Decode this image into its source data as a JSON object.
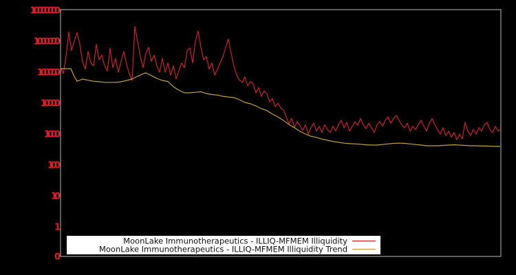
{
  "colors": {
    "background": "#000000",
    "plot_border": "#bdbdbd",
    "axis_label": "#e01e2b",
    "series_red": "#cb2130",
    "series_yellow": "#c2a33b",
    "legend_bg": "#ffffff",
    "legend_text": "#111111"
  },
  "chart_data": {
    "type": "line",
    "title": "",
    "xlabel": "",
    "ylabel": "",
    "log_scale_y": true,
    "ylim": [
      1,
      10000000
    ],
    "grid": false,
    "x_tick_labels": [],
    "legend_position": "bottom-center",
    "y_axis": {
      "tick_labels": [
        "10000000",
        "1000000",
        "100000",
        "10000",
        "1000",
        "100",
        "10",
        "1",
        "0"
      ]
    },
    "series": [
      {
        "name": "MoonLake Immunotherapeutics - ILLIQ-MFMEM Illiquidity",
        "color": "#cb2130",
        "points": [
          [
            0,
            145000
          ],
          [
            4,
            90000
          ],
          [
            8,
            320000
          ],
          [
            12,
            2000000
          ],
          [
            16,
            500000
          ],
          [
            20,
            1000000
          ],
          [
            24,
            1900000
          ],
          [
            28,
            800000
          ],
          [
            32,
            215000
          ],
          [
            36,
            125000
          ],
          [
            40,
            470000
          ],
          [
            44,
            200000
          ],
          [
            48,
            160000
          ],
          [
            52,
            800000
          ],
          [
            56,
            250000
          ],
          [
            60,
            360000
          ],
          [
            64,
            160000
          ],
          [
            68,
            110000
          ],
          [
            72,
            600000
          ],
          [
            76,
            140000
          ],
          [
            80,
            275000
          ],
          [
            84,
            100000
          ],
          [
            88,
            225000
          ],
          [
            92,
            470000
          ],
          [
            96,
            180000
          ],
          [
            100,
            90000
          ],
          [
            104,
            54000
          ],
          [
            108,
            3000000
          ],
          [
            112,
            1000000
          ],
          [
            116,
            320000
          ],
          [
            120,
            140000
          ],
          [
            124,
            400000
          ],
          [
            128,
            630000
          ],
          [
            132,
            225000
          ],
          [
            136,
            355000
          ],
          [
            140,
            160000
          ],
          [
            144,
            100000
          ],
          [
            148,
            280000
          ],
          [
            152,
            100000
          ],
          [
            156,
            200000
          ],
          [
            160,
            80000
          ],
          [
            164,
            160000
          ],
          [
            168,
            60000
          ],
          [
            172,
            112000
          ],
          [
            176,
            200000
          ],
          [
            180,
            140000
          ],
          [
            184,
            500000
          ],
          [
            188,
            600000
          ],
          [
            192,
            200000
          ],
          [
            196,
            1000000
          ],
          [
            200,
            2150000
          ],
          [
            204,
            630000
          ],
          [
            208,
            250000
          ],
          [
            212,
            320000
          ],
          [
            216,
            125000
          ],
          [
            220,
            200000
          ],
          [
            224,
            80000
          ],
          [
            228,
            125000
          ],
          [
            232,
            200000
          ],
          [
            236,
            320000
          ],
          [
            240,
            630000
          ],
          [
            244,
            1180000
          ],
          [
            248,
            400000
          ],
          [
            252,
            160000
          ],
          [
            256,
            80000
          ],
          [
            260,
            56000
          ],
          [
            264,
            47000
          ],
          [
            268,
            70000
          ],
          [
            272,
            36000
          ],
          [
            276,
            50000
          ],
          [
            280,
            42000
          ],
          [
            284,
            21500
          ],
          [
            288,
            32000
          ],
          [
            292,
            16600
          ],
          [
            296,
            25000
          ],
          [
            300,
            20000
          ],
          [
            304,
            11000
          ],
          [
            308,
            14000
          ],
          [
            312,
            7800
          ],
          [
            316,
            10000
          ],
          [
            320,
            7100
          ],
          [
            324,
            6000
          ],
          [
            328,
            3600
          ],
          [
            332,
            2150
          ],
          [
            336,
            3200
          ],
          [
            340,
            1660
          ],
          [
            344,
            2500
          ],
          [
            348,
            1900
          ],
          [
            352,
            1300
          ],
          [
            356,
            2000
          ],
          [
            360,
            1000
          ],
          [
            364,
            1600
          ],
          [
            368,
            2240
          ],
          [
            372,
            1250
          ],
          [
            376,
            1780
          ],
          [
            380,
            1120
          ],
          [
            384,
            2000
          ],
          [
            388,
            1400
          ],
          [
            392,
            1120
          ],
          [
            396,
            1780
          ],
          [
            400,
            1250
          ],
          [
            404,
            2000
          ],
          [
            408,
            2800
          ],
          [
            412,
            1600
          ],
          [
            416,
            2400
          ],
          [
            420,
            1250
          ],
          [
            424,
            1780
          ],
          [
            428,
            2500
          ],
          [
            432,
            1900
          ],
          [
            436,
            3200
          ],
          [
            440,
            2000
          ],
          [
            444,
            1500
          ],
          [
            448,
            2240
          ],
          [
            452,
            1600
          ],
          [
            456,
            1120
          ],
          [
            460,
            2000
          ],
          [
            464,
            2500
          ],
          [
            468,
            1780
          ],
          [
            472,
            2800
          ],
          [
            476,
            3550
          ],
          [
            480,
            2240
          ],
          [
            484,
            3200
          ],
          [
            488,
            4000
          ],
          [
            492,
            2800
          ],
          [
            496,
            2000
          ],
          [
            500,
            1600
          ],
          [
            504,
            2240
          ],
          [
            508,
            1250
          ],
          [
            512,
            1780
          ],
          [
            516,
            1400
          ],
          [
            520,
            2000
          ],
          [
            524,
            2800
          ],
          [
            528,
            1780
          ],
          [
            532,
            1250
          ],
          [
            536,
            2240
          ],
          [
            540,
            3200
          ],
          [
            544,
            2000
          ],
          [
            548,
            1400
          ],
          [
            552,
            1000
          ],
          [
            556,
            1600
          ],
          [
            560,
            900
          ],
          [
            564,
            1250
          ],
          [
            568,
            800
          ],
          [
            572,
            1120
          ],
          [
            576,
            660
          ],
          [
            580,
            1000
          ],
          [
            584,
            700
          ],
          [
            588,
            2400
          ],
          [
            592,
            1250
          ],
          [
            596,
            900
          ],
          [
            600,
            1400
          ],
          [
            604,
            1000
          ],
          [
            608,
            1600
          ],
          [
            612,
            1250
          ],
          [
            616,
            2000
          ],
          [
            620,
            2400
          ],
          [
            624,
            1400
          ],
          [
            628,
            1120
          ],
          [
            632,
            1780
          ],
          [
            636,
            1250
          ],
          [
            639,
            1400
          ]
        ]
      },
      {
        "name": "MoonLake Immunotherapeutics - ILLIQ-MFMEM Illiquidity Trend",
        "color": "#c2a33b",
        "points": [
          [
            0,
            130000
          ],
          [
            8,
            130000
          ],
          [
            15,
            130000
          ],
          [
            20,
            72000
          ],
          [
            24,
            51000
          ],
          [
            32,
            60000
          ],
          [
            40,
            55000
          ],
          [
            48,
            51000
          ],
          [
            56,
            49000
          ],
          [
            64,
            47000
          ],
          [
            72,
            47000
          ],
          [
            80,
            47000
          ],
          [
            88,
            49000
          ],
          [
            96,
            54000
          ],
          [
            104,
            60000
          ],
          [
            112,
            74000
          ],
          [
            120,
            89000
          ],
          [
            124,
            95000
          ],
          [
            132,
            78000
          ],
          [
            140,
            63000
          ],
          [
            148,
            54000
          ],
          [
            156,
            50000
          ],
          [
            164,
            34000
          ],
          [
            172,
            26000
          ],
          [
            180,
            21500
          ],
          [
            188,
            21500
          ],
          [
            196,
            22400
          ],
          [
            204,
            23400
          ],
          [
            212,
            20400
          ],
          [
            220,
            19000
          ],
          [
            228,
            18200
          ],
          [
            236,
            16600
          ],
          [
            244,
            15800
          ],
          [
            252,
            15100
          ],
          [
            260,
            12900
          ],
          [
            268,
            10500
          ],
          [
            276,
            9500
          ],
          [
            284,
            8100
          ],
          [
            292,
            6600
          ],
          [
            300,
            5750
          ],
          [
            308,
            4400
          ],
          [
            316,
            3600
          ],
          [
            324,
            2750
          ],
          [
            332,
            2040
          ],
          [
            340,
            1600
          ],
          [
            348,
            1230
          ],
          [
            356,
            1000
          ],
          [
            364,
            850
          ],
          [
            372,
            780
          ],
          [
            380,
            690
          ],
          [
            388,
            630
          ],
          [
            396,
            575
          ],
          [
            404,
            540
          ],
          [
            412,
            510
          ],
          [
            420,
            490
          ],
          [
            428,
            480
          ],
          [
            436,
            470
          ],
          [
            444,
            450
          ],
          [
            452,
            440
          ],
          [
            460,
            440
          ],
          [
            468,
            460
          ],
          [
            476,
            480
          ],
          [
            484,
            500
          ],
          [
            492,
            510
          ],
          [
            500,
            500
          ],
          [
            508,
            480
          ],
          [
            516,
            460
          ],
          [
            524,
            440
          ],
          [
            532,
            420
          ],
          [
            540,
            420
          ],
          [
            548,
            420
          ],
          [
            556,
            430
          ],
          [
            564,
            440
          ],
          [
            572,
            450
          ],
          [
            580,
            440
          ],
          [
            588,
            430
          ],
          [
            596,
            420
          ],
          [
            604,
            420
          ],
          [
            612,
            410
          ],
          [
            620,
            410
          ],
          [
            628,
            400
          ],
          [
            639,
            400
          ]
        ]
      }
    ]
  }
}
